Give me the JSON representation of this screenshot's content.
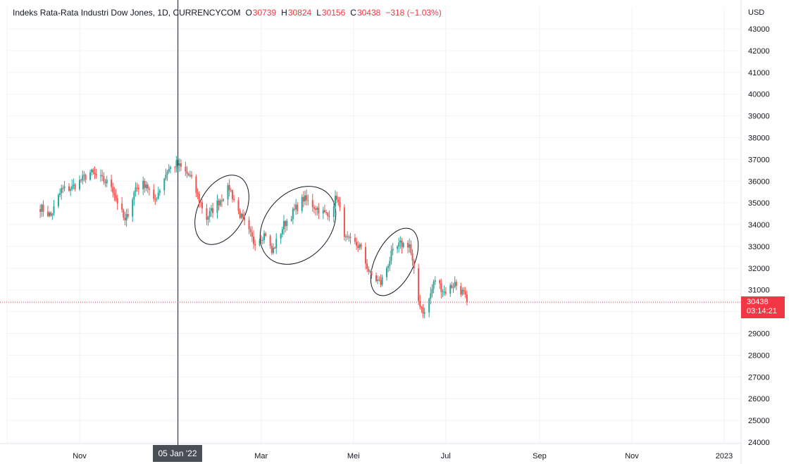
{
  "legend": {
    "symbol": "Indeks Rata-Rata Industri Dow Jones, 1D, CURRENCYCOM",
    "open_label": "O",
    "open": "30739",
    "high_label": "H",
    "high": "30824",
    "low_label": "L",
    "low": "30156",
    "close_label": "C",
    "close": "30438",
    "change": "−318 (−1.03%)"
  },
  "axis": {
    "currency": "USD"
  },
  "price_tag": {
    "price": "30438",
    "countdown": "03:14:21"
  },
  "crosshair": {
    "date_label": "05 Jan '22"
  },
  "colors": {
    "up": "#26a69a",
    "down": "#ef5350",
    "last_price": "#f23645",
    "grid": "#f0f3fa"
  },
  "chart_data": {
    "type": "candlestick",
    "title": "Indeks Rata-Rata Industri Dow Jones, 1D, CURRENCYCOM",
    "ylabel": "USD",
    "ylim": [
      24000,
      43000
    ],
    "y_ticks": [
      24000,
      25000,
      26000,
      27000,
      28000,
      29000,
      30000,
      31000,
      32000,
      33000,
      34000,
      35000,
      36000,
      37000,
      38000,
      39000,
      40000,
      41000,
      42000,
      43000
    ],
    "x_ticks": [
      {
        "label": "Nov",
        "date": "2021-11-01"
      },
      {
        "label": "Mar",
        "date": "2022-03-01"
      },
      {
        "label": "Mei",
        "date": "2022-05-01"
      },
      {
        "label": "Jul",
        "date": "2022-07-01"
      },
      {
        "label": "Sep",
        "date": "2022-09-01"
      },
      {
        "label": "Nov",
        "date": "2022-11-01"
      },
      {
        "label": "2023",
        "date": "2023-01-01"
      }
    ],
    "last_price": 30438,
    "crosshair_date": "2022-01-05",
    "series_close_approx": [
      {
        "date": "2021-10-06",
        "close": 34800
      },
      {
        "date": "2021-10-13",
        "close": 34400
      },
      {
        "date": "2021-10-20",
        "close": 35600
      },
      {
        "date": "2021-10-27",
        "close": 35700
      },
      {
        "date": "2021-11-03",
        "close": 36100
      },
      {
        "date": "2021-11-08",
        "close": 36400
      },
      {
        "date": "2021-11-15",
        "close": 36100
      },
      {
        "date": "2021-11-22",
        "close": 35800
      },
      {
        "date": "2021-11-29",
        "close": 34500
      },
      {
        "date": "2021-12-01",
        "close": 34100
      },
      {
        "date": "2021-12-08",
        "close": 35700
      },
      {
        "date": "2021-12-15",
        "close": 35900
      },
      {
        "date": "2021-12-20",
        "close": 35000
      },
      {
        "date": "2021-12-29",
        "close": 36500
      },
      {
        "date": "2022-01-04",
        "close": 36800
      },
      {
        "date": "2022-01-13",
        "close": 36200
      },
      {
        "date": "2022-01-24",
        "close": 34300
      },
      {
        "date": "2022-01-28",
        "close": 34700
      },
      {
        "date": "2022-02-08",
        "close": 35700
      },
      {
        "date": "2022-02-14",
        "close": 34600
      },
      {
        "date": "2022-02-24",
        "close": 33200
      },
      {
        "date": "2022-03-04",
        "close": 33600
      },
      {
        "date": "2022-03-08",
        "close": 32700
      },
      {
        "date": "2022-03-16",
        "close": 34000
      },
      {
        "date": "2022-03-29",
        "close": 35200
      },
      {
        "date": "2022-04-08",
        "close": 34700
      },
      {
        "date": "2022-04-14",
        "close": 34400
      },
      {
        "date": "2022-04-20",
        "close": 35300
      },
      {
        "date": "2022-04-26",
        "close": 33300
      },
      {
        "date": "2022-05-05",
        "close": 33000
      },
      {
        "date": "2022-05-12",
        "close": 31700
      },
      {
        "date": "2022-05-19",
        "close": 31300
      },
      {
        "date": "2022-05-26",
        "close": 32600
      },
      {
        "date": "2022-06-01",
        "close": 33100
      },
      {
        "date": "2022-06-07",
        "close": 33100
      },
      {
        "date": "2022-06-13",
        "close": 30500
      },
      {
        "date": "2022-06-17",
        "close": 29900
      },
      {
        "date": "2022-06-24",
        "close": 31500
      },
      {
        "date": "2022-06-30",
        "close": 30900
      },
      {
        "date": "2022-07-07",
        "close": 31300
      },
      {
        "date": "2022-07-13",
        "close": 30800
      },
      {
        "date": "2022-07-15",
        "close": 30438
      }
    ]
  }
}
